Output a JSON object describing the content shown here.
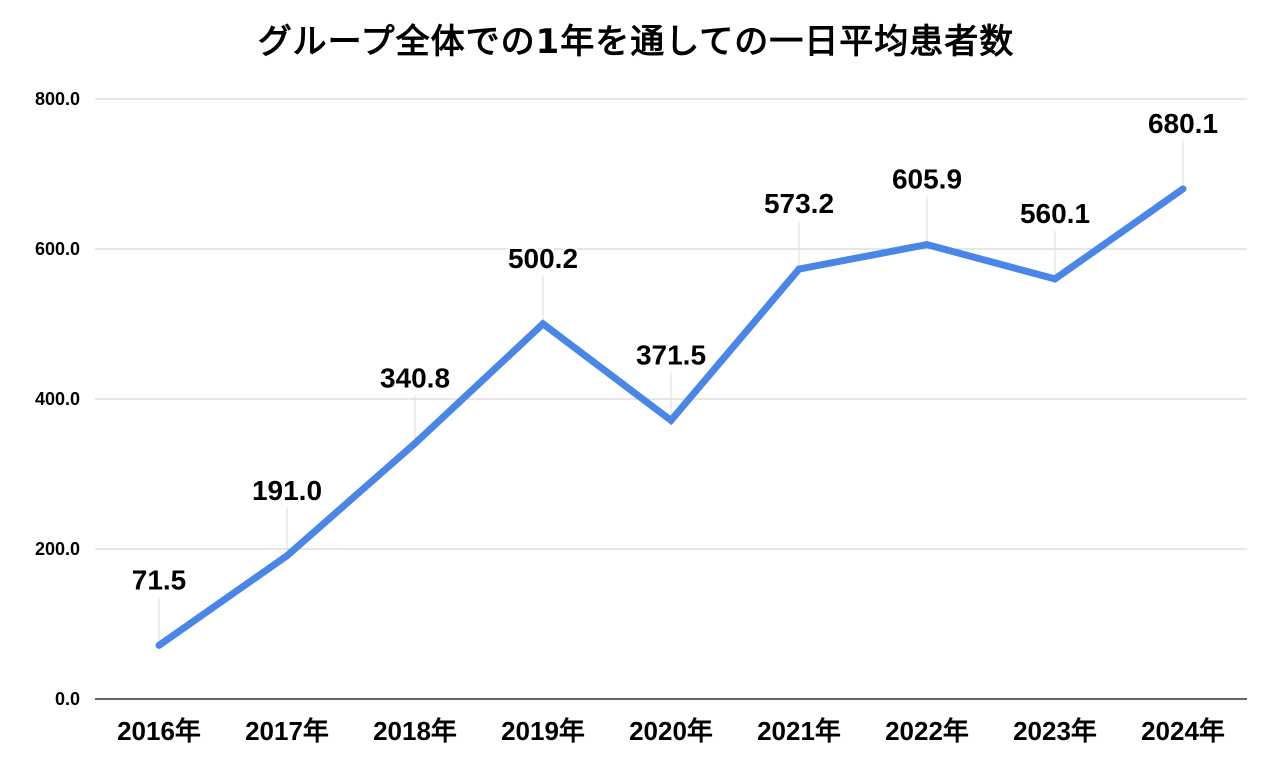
{
  "chart_data": {
    "type": "line",
    "title": "グループ全体での1年を通しての一日平均患者数",
    "xlabel": "",
    "ylabel": "",
    "categories": [
      "2016年",
      "2017年",
      "2018年",
      "2019年",
      "2020年",
      "2021年",
      "2022年",
      "2023年",
      "2024年"
    ],
    "series": [
      {
        "values": [
          71.5,
          191.0,
          340.8,
          500.2,
          371.5,
          573.2,
          605.9,
          560.1,
          680.1
        ],
        "data_labels": [
          "71.5",
          "191.0",
          "340.8",
          "500.2",
          "371.5",
          "573.2",
          "605.9",
          "560.1",
          "680.1"
        ]
      }
    ],
    "ylim": [
      0,
      800
    ],
    "yticks": [
      0,
      200,
      400,
      600,
      800
    ],
    "ytick_labels": [
      "0.0",
      "200.0",
      "400.0",
      "600.0",
      "800.0"
    ],
    "grid": true,
    "legend": "none",
    "colors": {
      "line": "#4a86e8",
      "grid": "#cccccc",
      "axis": "#333333",
      "text": "#000000"
    }
  }
}
